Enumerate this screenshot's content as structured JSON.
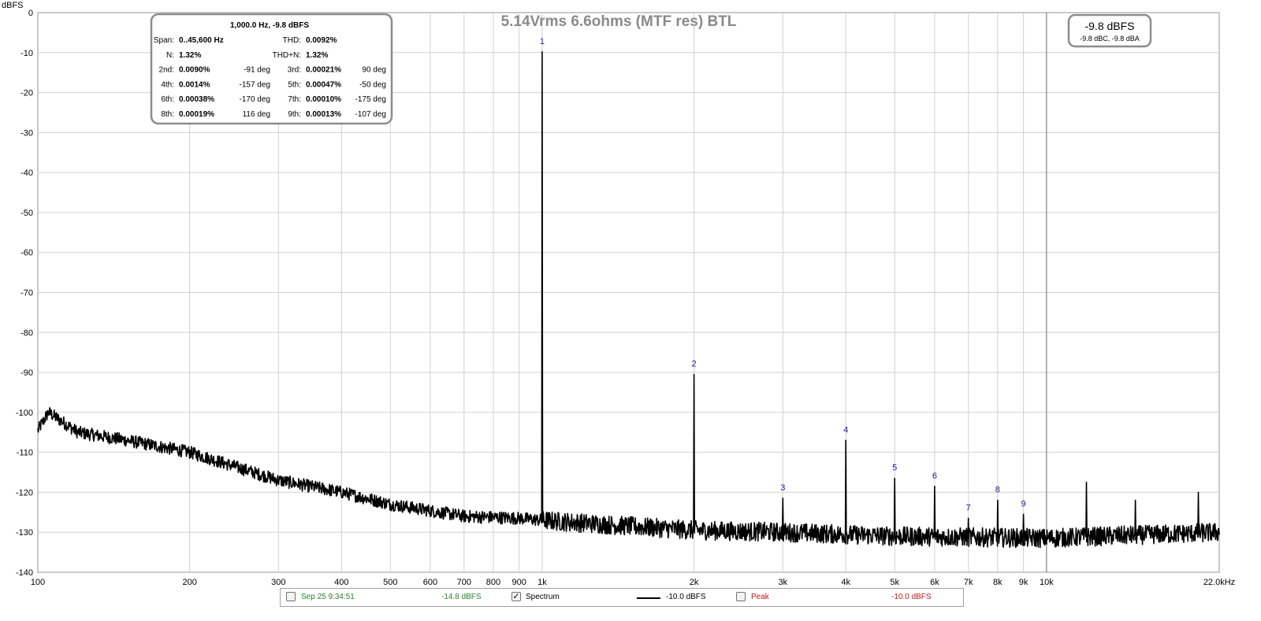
{
  "chart_data": {
    "type": "line",
    "title": "5.14Vrms 6.6ohms (MTF res) BTL",
    "ylabel": "dBFS",
    "xlabel": "",
    "x_scale": "log",
    "xlim": [
      100,
      22000
    ],
    "ylim": [
      -140,
      0
    ],
    "grid": true,
    "x_ticks": [
      100,
      200,
      300,
      400,
      500,
      600,
      700,
      800,
      900,
      1000,
      2000,
      3000,
      4000,
      5000,
      6000,
      7000,
      8000,
      9000,
      10000,
      22000
    ],
    "x_tick_labels": [
      "100",
      "200",
      "300",
      "400",
      "500",
      "600",
      "700",
      "800",
      "900",
      "1k",
      "2k",
      "3k",
      "4k",
      "5k",
      "6k",
      "7k",
      "8k",
      "9k",
      "10k",
      "22.0kHz"
    ],
    "y_ticks": [
      0,
      -10,
      -20,
      -30,
      -40,
      -50,
      -60,
      -70,
      -80,
      -90,
      -100,
      -110,
      -120,
      -130,
      -140
    ],
    "y_tick_labels": [
      "0",
      "-10",
      "-20",
      "-30",
      "-40",
      "-50",
      "-60",
      "-70",
      "-80",
      "-90",
      "-100",
      "-110",
      "-120",
      "-130",
      "-140"
    ],
    "series": [
      {
        "name": "Spectrum",
        "color": "#000000",
        "noise_floor": [
          [
            100,
            -104.5
          ],
          [
            105,
            -100
          ],
          [
            120,
            -105
          ],
          [
            150,
            -107
          ],
          [
            200,
            -110
          ],
          [
            300,
            -117
          ],
          [
            400,
            -120
          ],
          [
            500,
            -123
          ],
          [
            700,
            -126
          ],
          [
            900,
            -126.5
          ],
          [
            1000,
            -127
          ],
          [
            1500,
            -128.5
          ],
          [
            2000,
            -129.5
          ],
          [
            3000,
            -130
          ],
          [
            5000,
            -131
          ],
          [
            10000,
            -131.5
          ],
          [
            22000,
            -130
          ]
        ],
        "peaks": [
          {
            "x": 1000,
            "y": -9.8
          },
          {
            "x": 2000,
            "y": -90.5
          },
          {
            "x": 3000,
            "y": -121.5
          },
          {
            "x": 4000,
            "y": -107
          },
          {
            "x": 5000,
            "y": -116.5
          },
          {
            "x": 6000,
            "y": -118.5
          },
          {
            "x": 7000,
            "y": -126.5
          },
          {
            "x": 8000,
            "y": -122
          },
          {
            "x": 9000,
            "y": -125.5
          },
          {
            "x": 12000,
            "y": -117.5
          },
          {
            "x": 15000,
            "y": -122
          },
          {
            "x": 20000,
            "y": -120
          }
        ]
      }
    ],
    "harmonic_labels": [
      {
        "label": "1",
        "x": 1000,
        "y": -9.8
      },
      {
        "label": "2",
        "x": 2000,
        "y": -90.5
      },
      {
        "label": "3",
        "x": 3000,
        "y": -121.5
      },
      {
        "label": "4",
        "x": 4000,
        "y": -107
      },
      {
        "label": "5",
        "x": 5000,
        "y": -116.5
      },
      {
        "label": "6",
        "x": 6000,
        "y": -118.5
      },
      {
        "label": "7",
        "x": 7000,
        "y": -126.5
      },
      {
        "label": "8",
        "x": 8000,
        "y": -122
      },
      {
        "label": "9",
        "x": 9000,
        "y": -125.5
      }
    ],
    "cursor_x": 10000
  },
  "stats_box": {
    "header": "1,000.0 Hz, -9.8 dBFS",
    "rows": [
      [
        {
          "k": "Span:",
          "v": "0..45,600 Hz"
        },
        {
          "k": "THD:",
          "v": "0.0092%"
        }
      ],
      [
        {
          "k": "N:",
          "v": "1.32%"
        },
        {
          "k": "THD+N:",
          "v": "1.32%"
        }
      ],
      [
        {
          "k": "2nd:",
          "v": "0.0090%",
          "d": "-91 deg"
        },
        {
          "k": "3rd:",
          "v": "0.00021%",
          "d": "90 deg"
        }
      ],
      [
        {
          "k": "4th:",
          "v": "0.0014%",
          "d": "-157 deg"
        },
        {
          "k": "5th:",
          "v": "0.00047%",
          "d": "-50 deg"
        }
      ],
      [
        {
          "k": "6th:",
          "v": "0.00038%",
          "d": "-170 deg"
        },
        {
          "k": "7th:",
          "v": "0.00010%",
          "d": "-175 deg"
        }
      ],
      [
        {
          "k": "8th:",
          "v": "0.00019%",
          "d": "116 deg"
        },
        {
          "k": "9th:",
          "v": "0.00013%",
          "d": "-107 deg"
        }
      ]
    ]
  },
  "level_box": {
    "main": "-9.8 dBFS",
    "sub": "-9.8 dBC, -9.8 dBA"
  },
  "legend": {
    "item1_label": "Sep 25 9:34:51",
    "item1_value": "-14.8 dBFS",
    "item2_label": "Spectrum",
    "item2_value": "-10.0 dBFS",
    "item3_label": "Peak",
    "item3_value": "-10.0 dBFS",
    "item1_color": "#2e7d32",
    "item3_color": "#b71c1c"
  }
}
